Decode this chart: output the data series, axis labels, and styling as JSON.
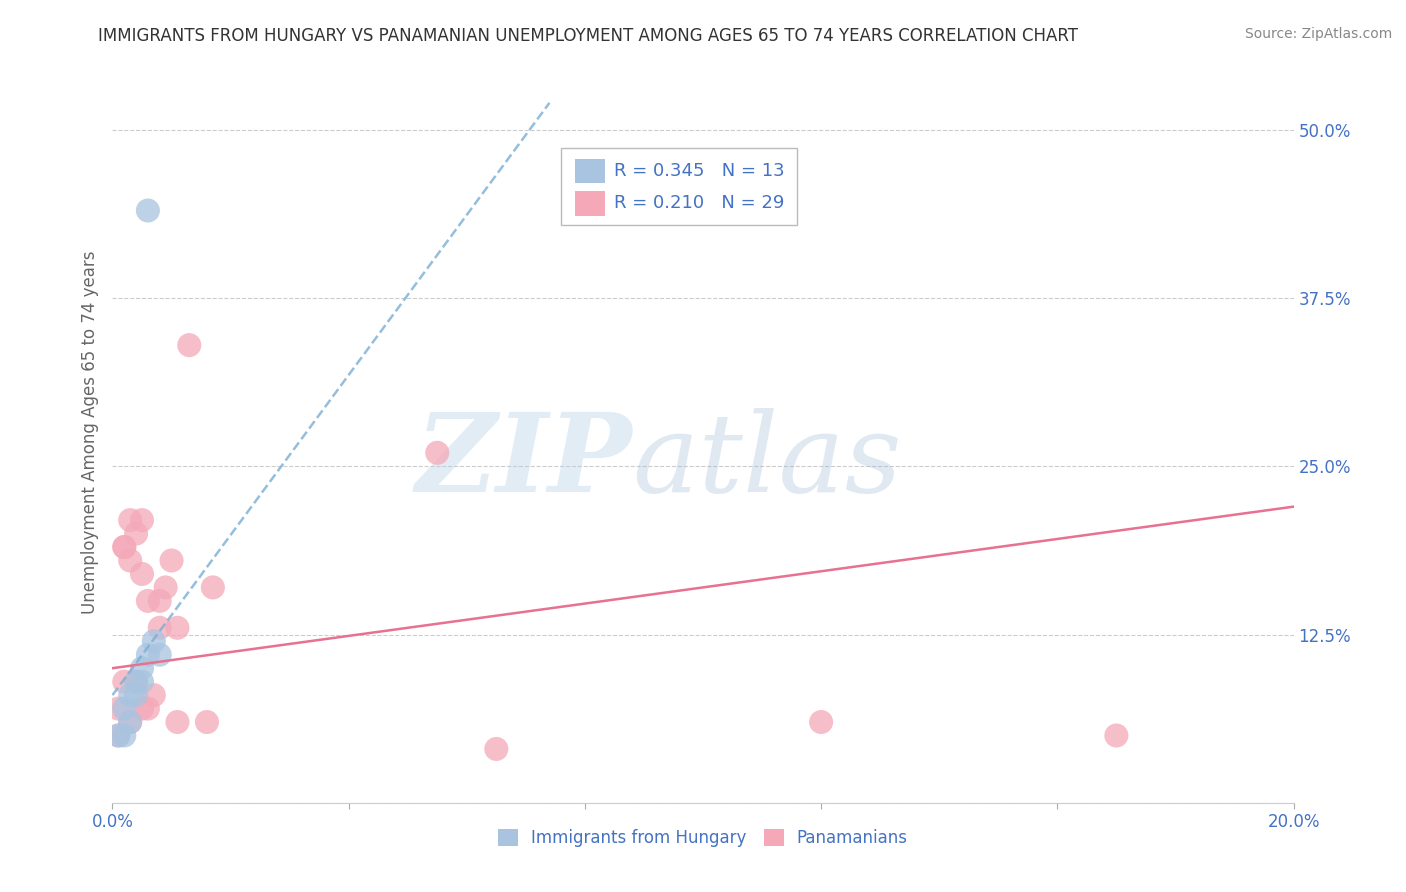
{
  "title": "IMMIGRANTS FROM HUNGARY VS PANAMANIAN UNEMPLOYMENT AMONG AGES 65 TO 74 YEARS CORRELATION CHART",
  "source": "Source: ZipAtlas.com",
  "ylabel": "Unemployment Among Ages 65 to 74 years",
  "xlabel_blue": "Immigrants from Hungary",
  "xlabel_pink": "Panamanians",
  "xlim": [
    0.0,
    0.2
  ],
  "ylim": [
    0.0,
    0.55
  ],
  "xticks": [
    0.0,
    0.04,
    0.08,
    0.12,
    0.16,
    0.2
  ],
  "xticklabels": [
    "0.0%",
    "",
    "",
    "",
    "",
    "20.0%"
  ],
  "yticks": [
    0.0,
    0.125,
    0.25,
    0.375,
    0.5
  ],
  "yticklabels": [
    "",
    "12.5%",
    "25.0%",
    "37.5%",
    "50.0%"
  ],
  "blue_color": "#a8c4e0",
  "pink_color": "#f4a8b8",
  "blue_line_color": "#7aaed4",
  "pink_line_color": "#e87090",
  "text_color": "#4472c4",
  "blue_scatter_x": [
    0.001,
    0.002,
    0.002,
    0.003,
    0.003,
    0.004,
    0.004,
    0.005,
    0.005,
    0.006,
    0.006,
    0.007,
    0.008
  ],
  "blue_scatter_y": [
    0.05,
    0.07,
    0.05,
    0.08,
    0.06,
    0.09,
    0.08,
    0.1,
    0.09,
    0.11,
    0.44,
    0.12,
    0.11
  ],
  "pink_scatter_x": [
    0.001,
    0.001,
    0.002,
    0.002,
    0.002,
    0.003,
    0.003,
    0.003,
    0.004,
    0.004,
    0.005,
    0.005,
    0.005,
    0.006,
    0.006,
    0.007,
    0.008,
    0.008,
    0.009,
    0.01,
    0.011,
    0.011,
    0.013,
    0.016,
    0.017,
    0.055,
    0.065,
    0.12,
    0.17
  ],
  "pink_scatter_y": [
    0.07,
    0.05,
    0.19,
    0.19,
    0.09,
    0.21,
    0.18,
    0.06,
    0.09,
    0.2,
    0.21,
    0.17,
    0.07,
    0.07,
    0.15,
    0.08,
    0.15,
    0.13,
    0.16,
    0.18,
    0.13,
    0.06,
    0.34,
    0.06,
    0.16,
    0.26,
    0.04,
    0.06,
    0.05
  ],
  "blue_trend_x": [
    0.0,
    0.074
  ],
  "blue_trend_y": [
    0.08,
    0.52
  ],
  "pink_trend_x": [
    0.0,
    0.2
  ],
  "pink_trend_y": [
    0.1,
    0.22
  ],
  "watermark_zip": "ZIP",
  "watermark_atlas": "atlas",
  "background_color": "#ffffff",
  "grid_color": "#cccccc"
}
